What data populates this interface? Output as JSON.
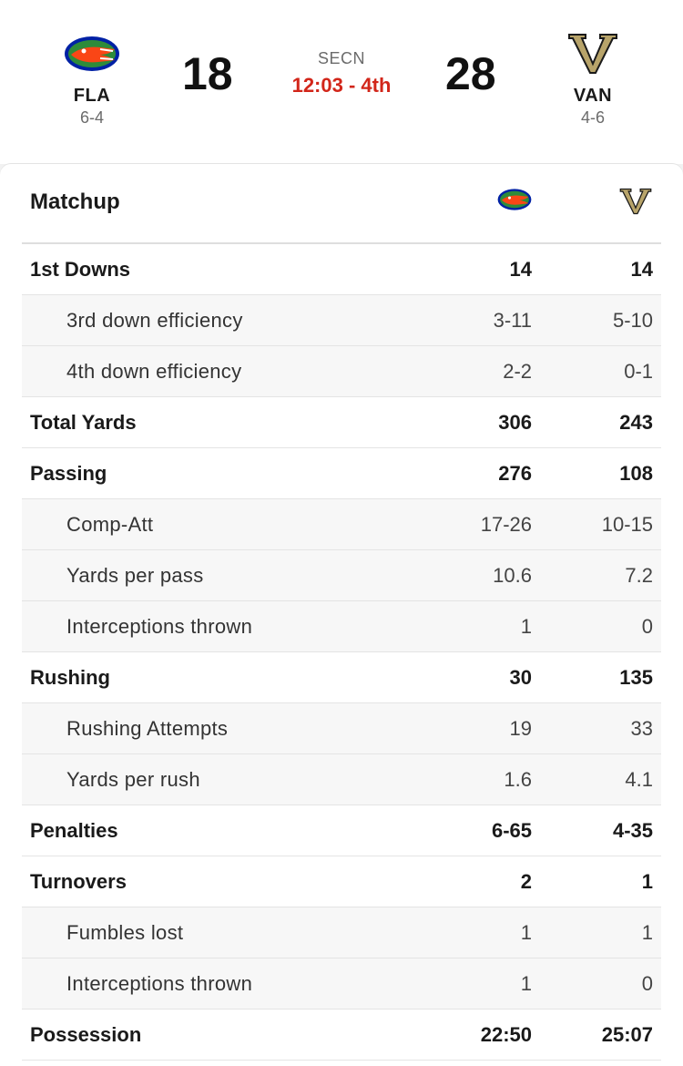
{
  "game": {
    "network": "SECN",
    "clock": "12:03 - 4th",
    "home": {
      "abbr": "FLA",
      "record": "6-4",
      "score": "18",
      "logo_icon": "florida-gator-logo-icon",
      "color": "#0021a5"
    },
    "away": {
      "abbr": "VAN",
      "record": "4-6",
      "score": "28",
      "logo_icon": "vanderbilt-v-logo-icon",
      "color": "#a89060"
    }
  },
  "matchup": {
    "title": "Matchup",
    "rows": [
      {
        "label": "1st Downs",
        "home": "14",
        "away": "14",
        "type": "main"
      },
      {
        "label": "3rd down efficiency",
        "home": "3-11",
        "away": "5-10",
        "type": "sub"
      },
      {
        "label": "4th down efficiency",
        "home": "2-2",
        "away": "0-1",
        "type": "sub"
      },
      {
        "label": "Total Yards",
        "home": "306",
        "away": "243",
        "type": "main"
      },
      {
        "label": "Passing",
        "home": "276",
        "away": "108",
        "type": "main"
      },
      {
        "label": "Comp-Att",
        "home": "17-26",
        "away": "10-15",
        "type": "sub"
      },
      {
        "label": "Yards per pass",
        "home": "10.6",
        "away": "7.2",
        "type": "sub"
      },
      {
        "label": "Interceptions thrown",
        "home": "1",
        "away": "0",
        "type": "sub"
      },
      {
        "label": "Rushing",
        "home": "30",
        "away": "135",
        "type": "main"
      },
      {
        "label": "Rushing Attempts",
        "home": "19",
        "away": "33",
        "type": "sub"
      },
      {
        "label": "Yards per rush",
        "home": "1.6",
        "away": "4.1",
        "type": "sub"
      },
      {
        "label": "Penalties",
        "home": "6-65",
        "away": "4-35",
        "type": "main"
      },
      {
        "label": "Turnovers",
        "home": "2",
        "away": "1",
        "type": "main"
      },
      {
        "label": "Fumbles lost",
        "home": "1",
        "away": "1",
        "type": "sub"
      },
      {
        "label": "Interceptions thrown",
        "home": "1",
        "away": "0",
        "type": "sub"
      },
      {
        "label": "Possession",
        "home": "22:50",
        "away": "25:07",
        "type": "main"
      }
    ]
  }
}
